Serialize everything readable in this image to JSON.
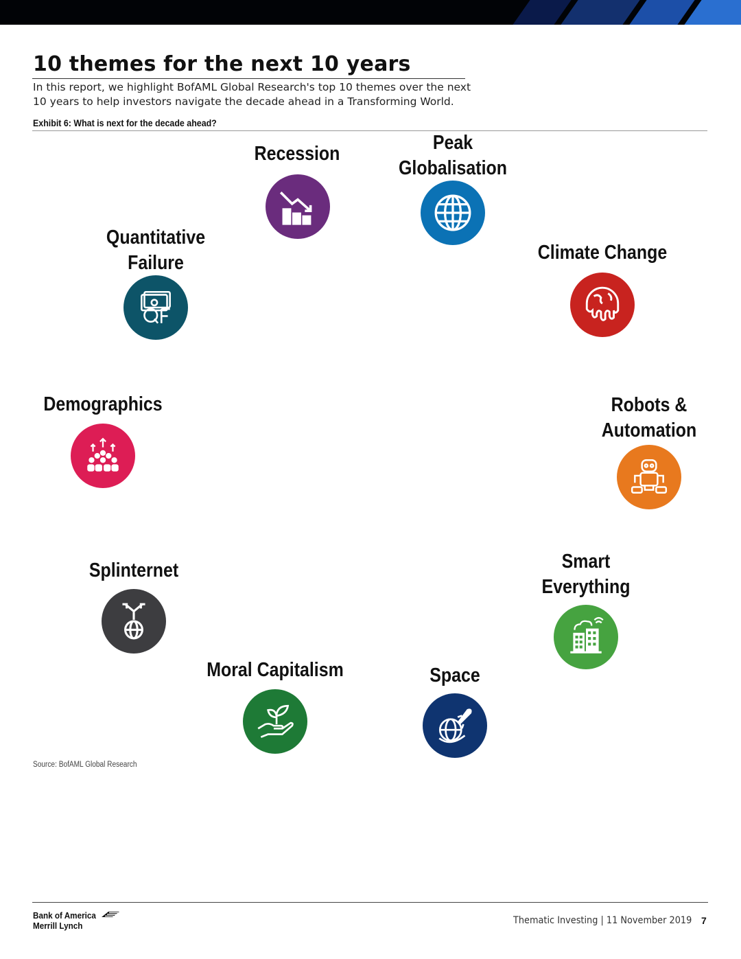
{
  "header": {
    "title": "10 themes for the next 10 years",
    "intro": "In this report, we highlight BofAML Global Research's top 10 themes over the next 10 years to help investors navigate the decade ahead in a Transforming World."
  },
  "exhibit": {
    "caption": "Exhibit 6: What is next for the decade ahead?"
  },
  "themes": [
    {
      "label": "Recession",
      "icon": "declining-bar-chart-icon",
      "color": "#6a2c7d"
    },
    {
      "label": "Peak\nGlobalisation",
      "icon": "globe-icon",
      "color": "#0b72b5"
    },
    {
      "label": "Quantitative\nFailure",
      "icon": "qf-banknote-icon",
      "color": "#0d5468"
    },
    {
      "label": "Climate Change",
      "icon": "melting-globe-icon",
      "color": "#c8231f"
    },
    {
      "label": "Demographics",
      "icon": "crowd-icon",
      "color": "#dd1d55"
    },
    {
      "label": "Robots &\nAutomation",
      "icon": "robot-icon",
      "color": "#e8791e"
    },
    {
      "label": "Splinternet",
      "icon": "splitting-globe-icon",
      "color": "#3d3d40"
    },
    {
      "label": "Smart\nEverything",
      "icon": "smart-building-icon",
      "color": "#46a340"
    },
    {
      "label": "Moral Capitalism",
      "icon": "hand-plant-icon",
      "color": "#1e7a36"
    },
    {
      "label": "Space",
      "icon": "rocket-globe-icon",
      "color": "#0f3470"
    }
  ],
  "source": "Source:  BofAML Global Research",
  "footer": {
    "logo_line1": "Bank of America",
    "logo_line2": "Merrill Lynch",
    "report": "Thematic Investing | 11 November 2019",
    "page": "7"
  }
}
